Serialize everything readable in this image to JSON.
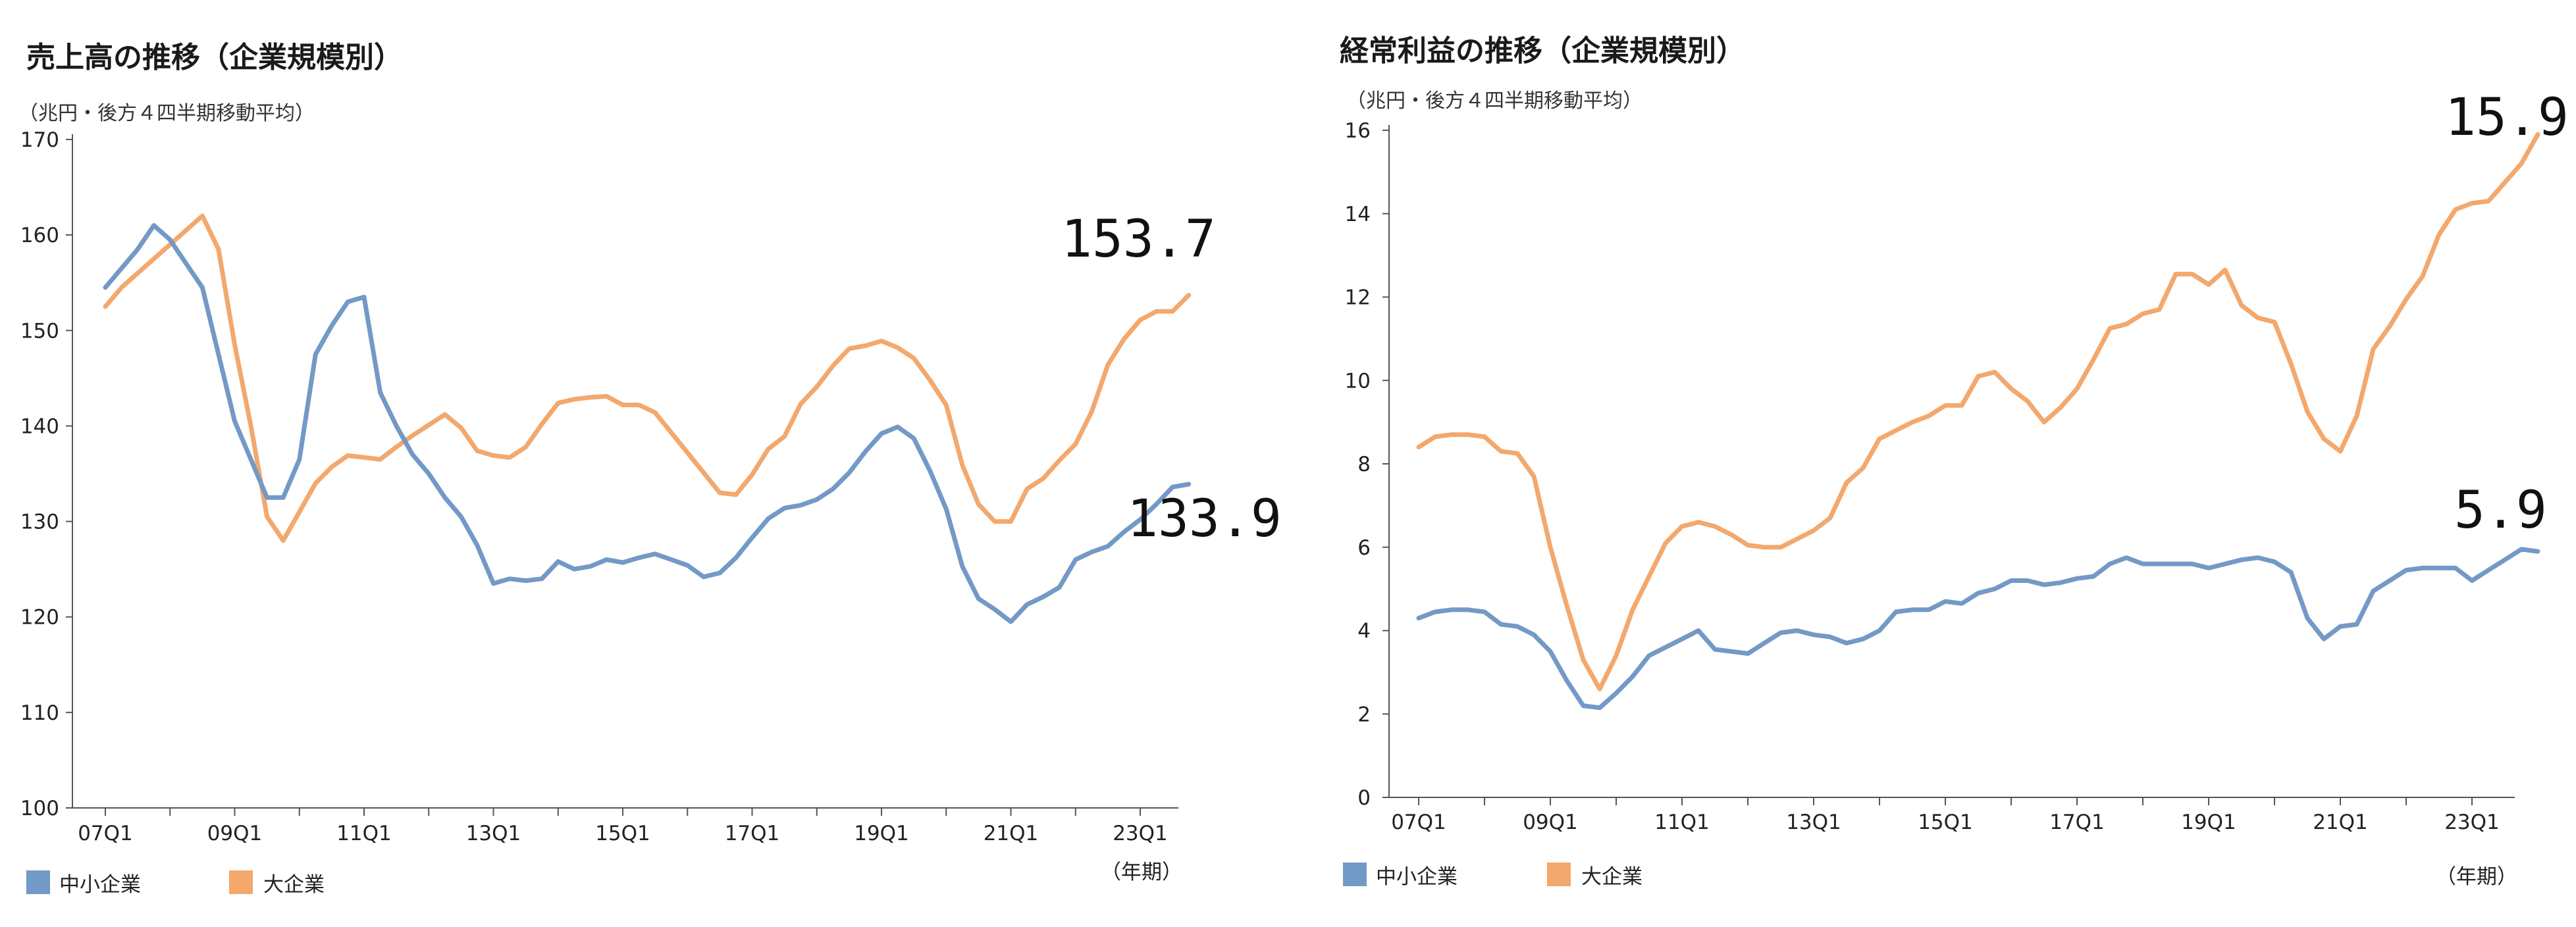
{
  "chart_data": [
    {
      "type": "line",
      "title": "売上高の推移（企業規模別）",
      "unit_label": "（兆円・後方４四半期移動平均）",
      "xlabel": "（年期）",
      "ylim": [
        100,
        170
      ],
      "yticks": [
        100,
        110,
        120,
        130,
        140,
        150,
        160,
        170
      ],
      "xticks": [
        "07Q1",
        "09Q1",
        "11Q1",
        "13Q1",
        "15Q1",
        "17Q1",
        "19Q1",
        "21Q1",
        "23Q1"
      ],
      "series": [
        {
          "name": "中小企業",
          "color": "#7399c6",
          "values": [
            154.5,
            156.5,
            158.5,
            161,
            159.5,
            157,
            154.5,
            147.5,
            140.5,
            136.5,
            132.5,
            132.5,
            136.5,
            147.5,
            150.5,
            153,
            153.5,
            143.5,
            140,
            137,
            135,
            132.5,
            130.5,
            127.5,
            123.5,
            124,
            123.8,
            124,
            125.8,
            125,
            125.3,
            126,
            125.7,
            126.2,
            126.6,
            126,
            125.4,
            124.2,
            124.6,
            126.2,
            128.3,
            130.3,
            131.4,
            131.7,
            132.3,
            133.4,
            135.1,
            137.3,
            139.2,
            139.9,
            138.7,
            135.3,
            131.3,
            125.3,
            121.9,
            120.8,
            119.5,
            121.3,
            122.1,
            123.1,
            126,
            126.8,
            127.4,
            128.9,
            130.2,
            131.8,
            133.6,
            133.9
          ]
        },
        {
          "name": "大企業",
          "color": "#f3a86d",
          "values": [
            152.5,
            154.5,
            156,
            157.5,
            159,
            160.5,
            162,
            158.5,
            148.5,
            140,
            130.5,
            128,
            131,
            134,
            135.7,
            136.9,
            136.7,
            136.5,
            137.8,
            139,
            140.1,
            141.2,
            139.8,
            137.4,
            136.9,
            136.7,
            137.8,
            140.2,
            142.4,
            142.8,
            143,
            143.1,
            142.2,
            142.2,
            141.4,
            139.3,
            137.2,
            135.1,
            133,
            132.8,
            134.9,
            137.6,
            138.9,
            142.3,
            144.1,
            146.3,
            148.1,
            148.4,
            148.9,
            148.2,
            147.1,
            144.8,
            142.2,
            135.9,
            131.8,
            130,
            130,
            133.4,
            134.5,
            136.4,
            138.1,
            141.5,
            146.4,
            149.1,
            151.1,
            152,
            152,
            153.7
          ]
        }
      ],
      "annotations": [
        {
          "text": "153.7",
          "series": "大企業",
          "x": "23Q4",
          "y": 153.7
        },
        {
          "text": "133.9",
          "series": "中小企業",
          "x": "23Q4",
          "y": 133.9
        }
      ]
    },
    {
      "type": "line",
      "title": "経常利益の推移（企業規模別）",
      "unit_label": "（兆円・後方４四半期移動平均）",
      "xlabel": "（年期）",
      "ylim": [
        0,
        16
      ],
      "yticks": [
        0,
        2,
        4,
        6,
        8,
        10,
        12,
        14,
        16
      ],
      "xticks": [
        "07Q1",
        "09Q1",
        "11Q1",
        "13Q1",
        "15Q1",
        "17Q1",
        "19Q1",
        "21Q1",
        "23Q1"
      ],
      "series": [
        {
          "name": "中小企業",
          "color": "#7399c6",
          "values": [
            4.3,
            4.45,
            4.5,
            4.5,
            4.45,
            4.15,
            4.1,
            3.9,
            3.5,
            2.8,
            2.2,
            2.15,
            2.5,
            2.9,
            3.4,
            3.6,
            3.8,
            4,
            3.55,
            3.5,
            3.45,
            3.7,
            3.95,
            4,
            3.9,
            3.85,
            3.7,
            3.8,
            4,
            4.45,
            4.5,
            4.5,
            4.7,
            4.65,
            4.9,
            5,
            5.2,
            5.2,
            5.1,
            5.15,
            5.25,
            5.3,
            5.6,
            5.75,
            5.6,
            5.6,
            5.6,
            5.6,
            5.5,
            5.6,
            5.7,
            5.75,
            5.65,
            5.4,
            4.3,
            3.8,
            4.1,
            4.15,
            4.95,
            5.2,
            5.45,
            5.5,
            5.5,
            5.5,
            5.2,
            5.45,
            5.7,
            5.95,
            5.9
          ]
        },
        {
          "name": "大企業",
          "color": "#f3a86d",
          "values": [
            8.4,
            8.65,
            8.7,
            8.7,
            8.65,
            8.3,
            8.25,
            7.7,
            6,
            4.6,
            3.3,
            2.6,
            3.4,
            4.5,
            5.3,
            6.1,
            6.5,
            6.6,
            6.5,
            6.3,
            6.05,
            6,
            6,
            6.2,
            6.4,
            6.7,
            7.55,
            7.9,
            8.6,
            8.8,
            9,
            9.15,
            9.4,
            9.4,
            10.1,
            10.2,
            9.8,
            9.5,
            9,
            9.35,
            9.8,
            10.5,
            11.25,
            11.35,
            11.6,
            11.7,
            12.55,
            12.55,
            12.3,
            12.65,
            11.8,
            11.5,
            11.4,
            10.4,
            9.25,
            8.6,
            8.3,
            9.15,
            10.75,
            11.3,
            11.95,
            12.5,
            13.5,
            14.1,
            14.25,
            14.3,
            14.75,
            15.2,
            15.9
          ]
        }
      ],
      "annotations": [
        {
          "text": "15.9",
          "series": "大企業",
          "x": "23Q4",
          "y": 15.9
        },
        {
          "text": "5.9",
          "series": "中小企業",
          "x": "23Q4",
          "y": 5.9
        }
      ]
    }
  ]
}
